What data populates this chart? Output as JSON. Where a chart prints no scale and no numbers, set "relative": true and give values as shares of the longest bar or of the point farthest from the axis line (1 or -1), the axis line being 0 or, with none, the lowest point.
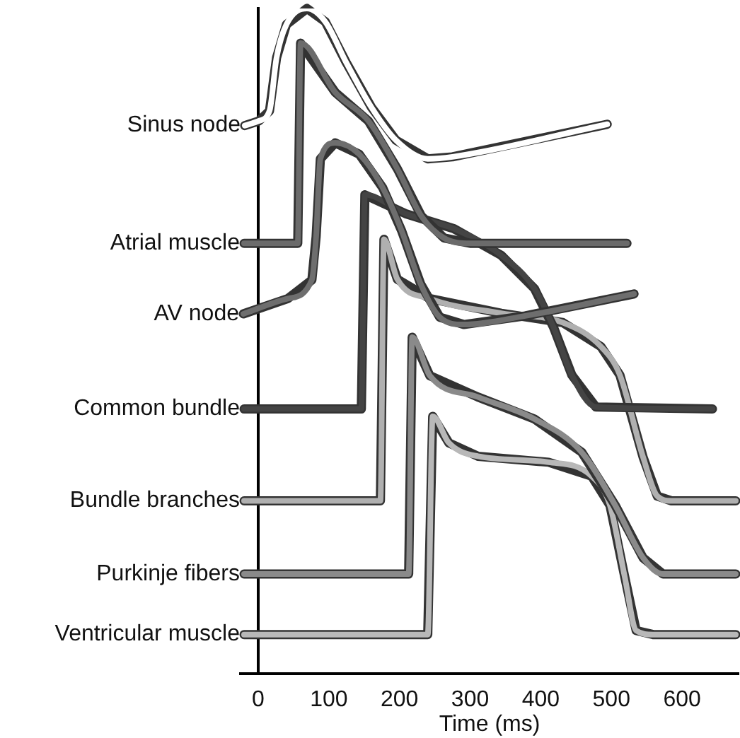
{
  "chart_data": {
    "type": "line",
    "relative": true,
    "xlabel": "Time (ms)",
    "xlim": [
      -25,
      680
    ],
    "xticks": [
      0,
      100,
      200,
      300,
      400,
      500,
      600
    ],
    "marker": "none",
    "line_style": "solid",
    "series": [
      {
        "name": "Sinus node",
        "color": "#ffffff",
        "x": [
          -19,
          1,
          16,
          26,
          40,
          69,
          95,
          125,
          160,
          195,
          240,
          275,
          494
        ],
        "values": [
          0.824,
          0.831,
          0.846,
          0.926,
          0.976,
          1.0,
          0.98,
          0.918,
          0.852,
          0.802,
          0.774,
          0.777,
          0.826
        ]
      },
      {
        "name": "Atrial muscle",
        "color": "#6b6b6b",
        "x": [
          -20,
          56,
          60,
          109,
          156,
          197,
          231,
          263,
          300,
          522
        ],
        "values": [
          0.647,
          0.647,
          0.948,
          0.874,
          0.831,
          0.759,
          0.688,
          0.655,
          0.647,
          0.647
        ]
      },
      {
        "name": "AV node",
        "color": "#6e6e6e",
        "x": [
          -21,
          42,
          76,
          82,
          88,
          109,
          143,
          176,
          203,
          230,
          257,
          291,
          378,
          532
        ],
        "values": [
          0.541,
          0.564,
          0.592,
          0.657,
          0.774,
          0.798,
          0.781,
          0.731,
          0.666,
          0.586,
          0.536,
          0.525,
          0.538,
          0.571
        ]
      },
      {
        "name": "Common bundle",
        "color": "#444444",
        "x": [
          -20,
          146,
          151,
          210,
          277,
          344,
          391,
          418,
          444,
          478,
          643
        ],
        "values": [
          0.398,
          0.398,
          0.72,
          0.691,
          0.669,
          0.629,
          0.579,
          0.521,
          0.449,
          0.401,
          0.398
        ]
      },
      {
        "name": "Bundle branches",
        "color": "#b0b0b0",
        "x": [
          -20,
          173,
          178,
          197,
          243,
          344,
          431,
          485,
          512,
          545,
          565,
          585,
          676
        ],
        "values": [
          0.26,
          0.26,
          0.653,
          0.593,
          0.564,
          0.542,
          0.528,
          0.492,
          0.449,
          0.325,
          0.267,
          0.26,
          0.26
        ]
      },
      {
        "name": "Purkinje fibers",
        "color": "#8a8a8a",
        "x": [
          -20,
          213,
          218,
          243,
          311,
          391,
          458,
          505,
          545,
          573,
          676
        ],
        "values": [
          0.15,
          0.15,
          0.506,
          0.448,
          0.416,
          0.383,
          0.333,
          0.254,
          0.174,
          0.15,
          0.15
        ]
      },
      {
        "name": "Ventricular muscle",
        "color": "#b8b8b8",
        "x": [
          -20,
          240,
          247,
          270,
          311,
          411,
          472,
          498,
          519,
          535,
          559,
          676
        ],
        "values": [
          0.059,
          0.059,
          0.387,
          0.347,
          0.327,
          0.318,
          0.297,
          0.253,
          0.145,
          0.065,
          0.059,
          0.059
        ]
      }
    ]
  }
}
